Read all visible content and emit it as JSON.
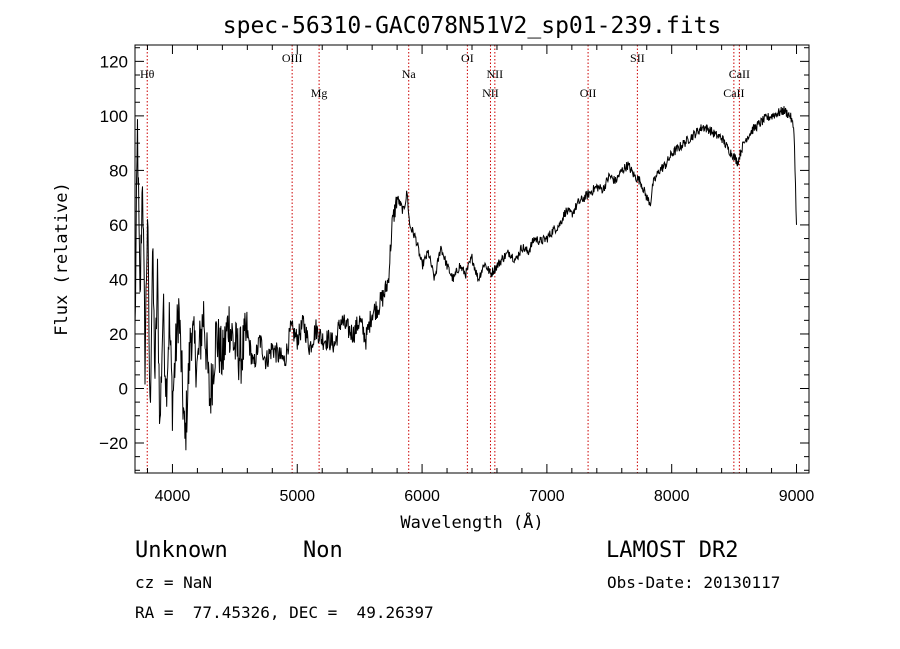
{
  "chart_data": {
    "type": "line",
    "title": "spec-56310-GAC078N51V2_sp01-239.fits",
    "xlabel": "Wavelength (Å)",
    "ylabel": "Flux (relative)",
    "xlim": [
      3700,
      9100
    ],
    "ylim": [
      -31,
      126
    ],
    "xticks": [
      4000,
      5000,
      6000,
      7000,
      8000,
      9000
    ],
    "yticks": [
      -20,
      0,
      20,
      40,
      60,
      80,
      100,
      120
    ],
    "grid": false,
    "line_color": "#000000",
    "marker_color": "#cc0000",
    "series": [
      {
        "x": [
          3700,
          3720,
          3740,
          3760,
          3780,
          3800,
          3820,
          3840,
          3860,
          3880,
          3900,
          3925,
          3950,
          3975,
          4000,
          4050,
          4100,
          4150,
          4200,
          4250,
          4300,
          4350,
          4400,
          4450,
          4500,
          4550,
          4600,
          4650,
          4700,
          4750,
          4800,
          4850,
          4900,
          4950,
          5000,
          5050,
          5100,
          5150,
          5200,
          5250,
          5300,
          5350,
          5400,
          5450,
          5500,
          5550,
          5600,
          5650,
          5700,
          5730,
          5760,
          5800,
          5850,
          5880,
          5900,
          5950,
          6000,
          6050,
          6100,
          6150,
          6200,
          6250,
          6300,
          6350,
          6400,
          6450,
          6500,
          6550,
          6600,
          6650,
          6700,
          6750,
          6800,
          6850,
          6900,
          6950,
          7000,
          7050,
          7100,
          7150,
          7200,
          7250,
          7300,
          7350,
          7400,
          7450,
          7500,
          7550,
          7600,
          7650,
          7700,
          7750,
          7800,
          7830,
          7850,
          7900,
          7950,
          8000,
          8050,
          8100,
          8150,
          8200,
          8250,
          8300,
          8350,
          8400,
          8450,
          8500,
          8530,
          8560,
          8600,
          8650,
          8700,
          8750,
          8800,
          8850,
          8900,
          8950,
          8980,
          9000
        ],
        "y": [
          20,
          95,
          30,
          80,
          10,
          65,
          -10,
          50,
          5,
          40,
          -15,
          30,
          0,
          25,
          -5,
          30,
          -20,
          22,
          8,
          28,
          -5,
          20,
          10,
          25,
          15,
          12,
          20,
          8,
          18,
          10,
          15,
          12,
          10,
          22,
          18,
          24,
          15,
          22,
          18,
          18,
          16,
          25,
          22,
          20,
          25,
          18,
          28,
          30,
          35,
          40,
          60,
          70,
          65,
          72,
          60,
          55,
          45,
          50,
          40,
          52,
          45,
          40,
          45,
          42,
          48,
          40,
          46,
          42,
          45,
          48,
          50,
          47,
          52,
          50,
          55,
          54,
          55,
          58,
          60,
          65,
          64,
          68,
          70,
          72,
          74,
          73,
          78,
          76,
          80,
          82,
          78,
          76,
          70,
          68,
          75,
          80,
          82,
          86,
          88,
          90,
          92,
          94,
          96,
          95,
          93,
          92,
          88,
          85,
          83,
          88,
          92,
          95,
          97,
          99,
          100,
          101,
          102,
          100,
          95,
          60
        ]
      }
    ],
    "lines": [
      {
        "label": "Hθ",
        "x": 3798,
        "row": 2
      },
      {
        "label": "OIII",
        "x": 4959,
        "row": 1
      },
      {
        "label": "Mg",
        "x": 5175,
        "row": 3
      },
      {
        "label": "Na",
        "x": 5893,
        "row": 2
      },
      {
        "label": "OI",
        "x": 6363,
        "row": 1
      },
      {
        "label": "NII",
        "x": 6548,
        "row": 3
      },
      {
        "label": "NII",
        "x": 6583,
        "row": 2
      },
      {
        "label": "OII",
        "x": 7330,
        "row": 3
      },
      {
        "label": "SII",
        "x": 7725,
        "row": 1
      },
      {
        "label": "CaII",
        "x": 8498,
        "row": 3
      },
      {
        "label": "CaII",
        "x": 8542,
        "row": 2
      }
    ]
  },
  "info": {
    "object_class": "Unknown",
    "object_subclass": "Non",
    "survey": "LAMOST DR2",
    "cz": "cz = NaN",
    "obs_date": "Obs-Date: 20130117",
    "radec": "RA =  77.45326, DEC =  49.26397"
  }
}
